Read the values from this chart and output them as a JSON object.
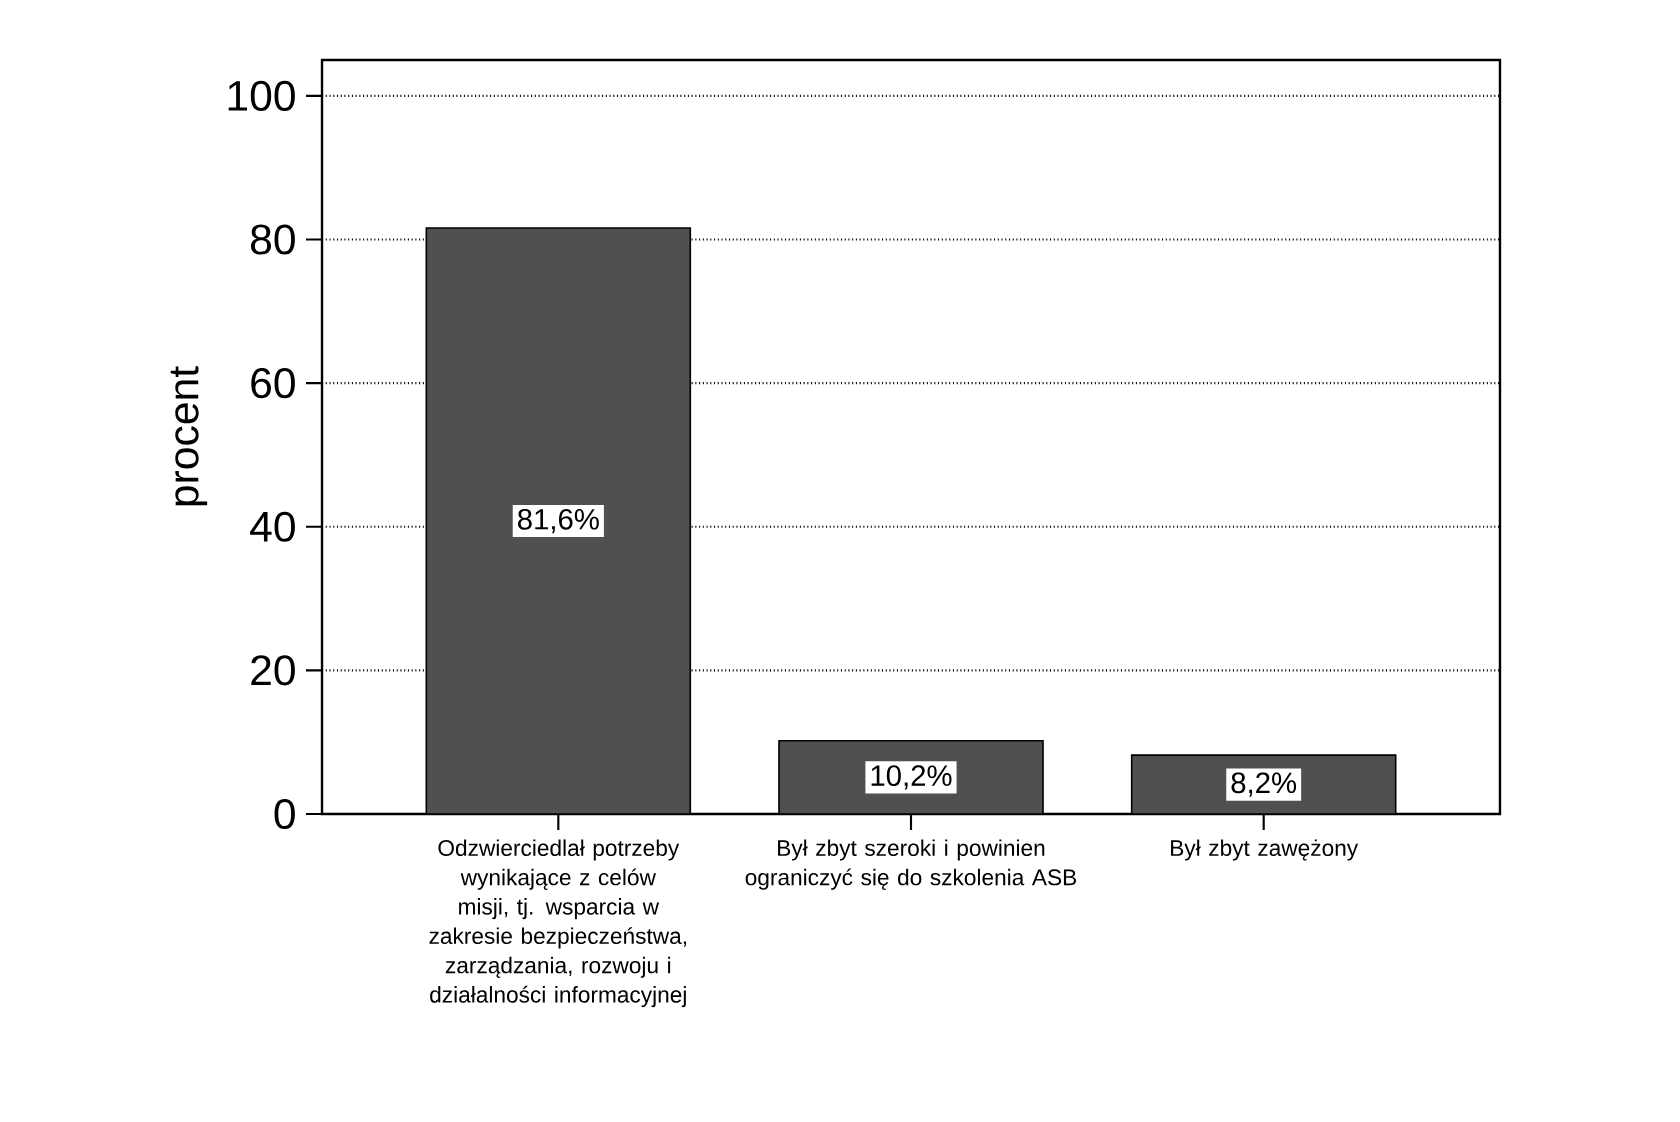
{
  "chart_data": {
    "type": "bar",
    "ylabel": "procent",
    "categories": [
      "Odzwierciedlał potrzeby wynikające z celów misji, tj. wsparcia w zakresie bezpieczeństwa, zarządzania, rozwoju i działalności informacyjnej",
      "Był zbyt szeroki i powinien ograniczyć się do szkolenia ASB",
      "Był zbyt zawężony"
    ],
    "values": [
      81.6,
      10.2,
      8.2
    ],
    "value_labels": [
      "81,6%",
      "10,2%",
      "8,2%"
    ],
    "color": "#505050",
    "ylim": [
      0,
      105
    ],
    "yticks": [
      0,
      20,
      40,
      60,
      80,
      100
    ],
    "grid": "y"
  }
}
